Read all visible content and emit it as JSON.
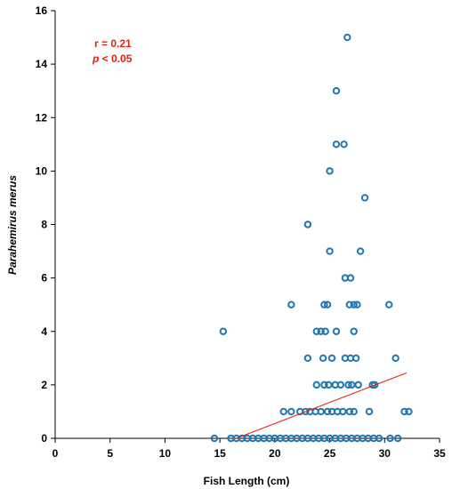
{
  "chart_data": {
    "type": "scatter",
    "title": "",
    "xlabel": "Fish Length (cm)",
    "ylabel": "Parahemirus merus",
    "xlim": [
      0,
      35
    ],
    "ylim": [
      0,
      16
    ],
    "x_ticks": [
      0,
      5,
      10,
      15,
      20,
      25,
      30,
      35
    ],
    "y_ticks": [
      0,
      2,
      4,
      6,
      8,
      10,
      12,
      14,
      16
    ],
    "grid": false,
    "marker_color": "#1f77b4",
    "trend_color": "#e8200c",
    "annotation": {
      "line1": "r = 0.21",
      "line2_italic": "p",
      "line2_rest": " < 0.05",
      "color": "#e8200c"
    },
    "trendline": {
      "x": [
        16.5,
        32.0
      ],
      "y": [
        0.0,
        2.45
      ]
    },
    "points": [
      {
        "x": 14.5,
        "y": 0
      },
      {
        "x": 16.0,
        "y": 0
      },
      {
        "x": 16.5,
        "y": 0
      },
      {
        "x": 17.0,
        "y": 0
      },
      {
        "x": 17.5,
        "y": 0
      },
      {
        "x": 18.0,
        "y": 0
      },
      {
        "x": 18.5,
        "y": 0
      },
      {
        "x": 19.0,
        "y": 0
      },
      {
        "x": 19.5,
        "y": 0
      },
      {
        "x": 20.0,
        "y": 0
      },
      {
        "x": 20.5,
        "y": 0
      },
      {
        "x": 21.0,
        "y": 0
      },
      {
        "x": 21.5,
        "y": 0
      },
      {
        "x": 22.0,
        "y": 0
      },
      {
        "x": 22.5,
        "y": 0
      },
      {
        "x": 23.0,
        "y": 0
      },
      {
        "x": 23.5,
        "y": 0
      },
      {
        "x": 24.0,
        "y": 0
      },
      {
        "x": 24.5,
        "y": 0
      },
      {
        "x": 25.0,
        "y": 0
      },
      {
        "x": 25.5,
        "y": 0
      },
      {
        "x": 26.0,
        "y": 0
      },
      {
        "x": 26.5,
        "y": 0
      },
      {
        "x": 27.0,
        "y": 0
      },
      {
        "x": 27.5,
        "y": 0
      },
      {
        "x": 28.0,
        "y": 0
      },
      {
        "x": 28.5,
        "y": 0
      },
      {
        "x": 29.0,
        "y": 0
      },
      {
        "x": 29.5,
        "y": 0
      },
      {
        "x": 30.5,
        "y": 0
      },
      {
        "x": 31.2,
        "y": 0
      },
      {
        "x": 20.8,
        "y": 1
      },
      {
        "x": 21.5,
        "y": 1
      },
      {
        "x": 22.3,
        "y": 1
      },
      {
        "x": 22.8,
        "y": 1
      },
      {
        "x": 23.2,
        "y": 1
      },
      {
        "x": 23.7,
        "y": 1
      },
      {
        "x": 24.2,
        "y": 1
      },
      {
        "x": 24.8,
        "y": 1
      },
      {
        "x": 25.2,
        "y": 1
      },
      {
        "x": 25.7,
        "y": 1
      },
      {
        "x": 26.2,
        "y": 1
      },
      {
        "x": 26.8,
        "y": 1
      },
      {
        "x": 27.2,
        "y": 1
      },
      {
        "x": 28.6,
        "y": 1
      },
      {
        "x": 31.8,
        "y": 1
      },
      {
        "x": 32.2,
        "y": 1
      },
      {
        "x": 23.8,
        "y": 2
      },
      {
        "x": 24.5,
        "y": 2
      },
      {
        "x": 24.9,
        "y": 2
      },
      {
        "x": 25.5,
        "y": 2
      },
      {
        "x": 26.0,
        "y": 2
      },
      {
        "x": 26.7,
        "y": 2
      },
      {
        "x": 27.0,
        "y": 2
      },
      {
        "x": 27.6,
        "y": 2
      },
      {
        "x": 28.9,
        "y": 2
      },
      {
        "x": 29.1,
        "y": 2
      },
      {
        "x": 23.0,
        "y": 3
      },
      {
        "x": 24.4,
        "y": 3
      },
      {
        "x": 25.2,
        "y": 3
      },
      {
        "x": 26.4,
        "y": 3
      },
      {
        "x": 26.9,
        "y": 3
      },
      {
        "x": 27.4,
        "y": 3
      },
      {
        "x": 31.0,
        "y": 3
      },
      {
        "x": 15.3,
        "y": 4
      },
      {
        "x": 23.8,
        "y": 4
      },
      {
        "x": 24.2,
        "y": 4
      },
      {
        "x": 24.6,
        "y": 4
      },
      {
        "x": 25.6,
        "y": 4
      },
      {
        "x": 27.2,
        "y": 4
      },
      {
        "x": 21.5,
        "y": 5
      },
      {
        "x": 24.5,
        "y": 5
      },
      {
        "x": 24.8,
        "y": 5
      },
      {
        "x": 26.8,
        "y": 5
      },
      {
        "x": 27.2,
        "y": 5
      },
      {
        "x": 27.5,
        "y": 5
      },
      {
        "x": 30.4,
        "y": 5
      },
      {
        "x": 26.4,
        "y": 6
      },
      {
        "x": 26.9,
        "y": 6
      },
      {
        "x": 25.0,
        "y": 7
      },
      {
        "x": 27.8,
        "y": 7
      },
      {
        "x": 23.0,
        "y": 8
      },
      {
        "x": 28.2,
        "y": 9
      },
      {
        "x": 25.0,
        "y": 10
      },
      {
        "x": 25.6,
        "y": 11
      },
      {
        "x": 26.3,
        "y": 11
      },
      {
        "x": 25.6,
        "y": 13
      },
      {
        "x": 26.6,
        "y": 15
      }
    ]
  }
}
